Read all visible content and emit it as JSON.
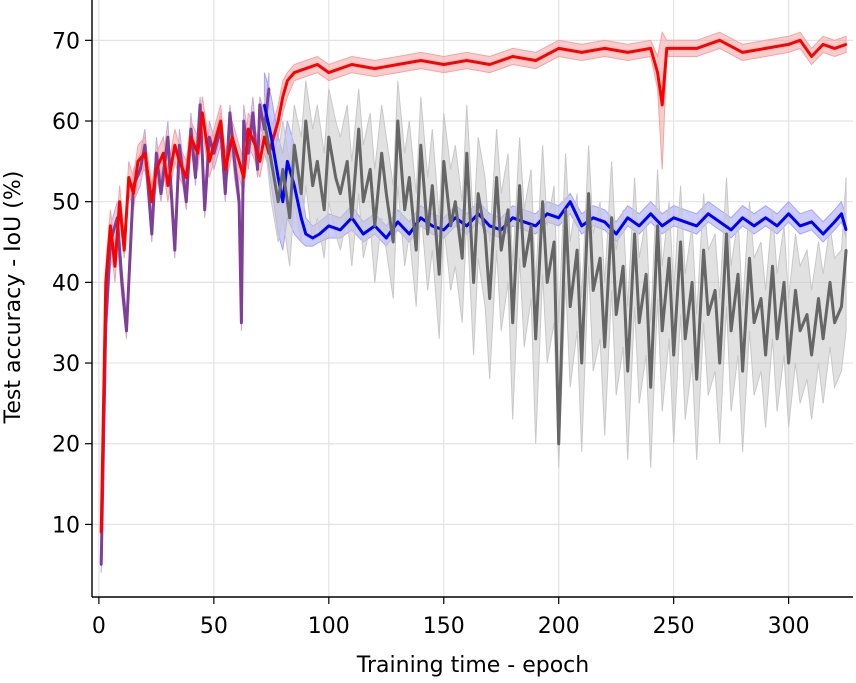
{
  "chart_data": {
    "type": "line",
    "title": "",
    "xlabel": "Training time - epoch",
    "ylabel": "Test accuracy - IoU (%)",
    "xlim": [
      -3,
      328
    ],
    "ylim": [
      1,
      75
    ],
    "xticks": [
      0,
      50,
      100,
      150,
      200,
      250,
      300
    ],
    "yticks": [
      10,
      20,
      30,
      40,
      50,
      60,
      70
    ],
    "grid": true,
    "legend": "none",
    "series": [
      {
        "color": "#7f3f98",
        "band_color": "#c9a7d8",
        "x": [
          1,
          3,
          5,
          8,
          10,
          12,
          15,
          18,
          20,
          23,
          25,
          27,
          30,
          33,
          35,
          38,
          40,
          42,
          44,
          46,
          48,
          50,
          53,
          55,
          57,
          59,
          61,
          62,
          63,
          65,
          67,
          69,
          70,
          72,
          74
        ],
        "y": [
          5,
          35,
          45,
          48,
          40,
          34,
          52,
          54,
          57,
          46,
          56,
          51,
          58,
          44,
          57,
          50,
          59,
          53,
          62,
          49,
          58,
          56,
          59,
          51,
          61,
          55,
          50,
          35,
          60,
          56,
          61,
          54,
          62,
          59,
          64
        ],
        "lower": [
          4,
          32,
          42,
          45,
          38,
          33,
          50,
          52,
          55,
          45,
          54,
          50,
          56,
          43,
          55,
          49,
          57,
          52,
          60,
          48,
          56,
          54,
          57,
          50,
          59,
          53,
          49,
          34,
          58,
          54,
          59,
          53,
          60,
          57,
          62
        ],
        "upper": [
          7,
          38,
          47,
          50,
          42,
          36,
          54,
          56,
          59,
          48,
          58,
          53,
          60,
          46,
          59,
          52,
          61,
          55,
          63,
          51,
          60,
          58,
          61,
          53,
          62,
          57,
          52,
          37,
          62,
          58,
          63,
          56,
          63,
          61,
          66
        ]
      },
      {
        "color": "#ff0000",
        "band_color": "#f4a3a3",
        "x": [
          1,
          3,
          5,
          7,
          9,
          11,
          13,
          15,
          17,
          20,
          23,
          25,
          28,
          30,
          33,
          35,
          38,
          40,
          43,
          45,
          48,
          50,
          53,
          55,
          58,
          60,
          63,
          65,
          68,
          70,
          72,
          74,
          76,
          78,
          80,
          82,
          85,
          90,
          95,
          100,
          110,
          120,
          130,
          140,
          150,
          160,
          170,
          180,
          190,
          200,
          210,
          220,
          230,
          240,
          243,
          245,
          247,
          250,
          260,
          270,
          280,
          290,
          300,
          305,
          310,
          315,
          320,
          325
        ],
        "y": [
          9,
          40,
          47,
          42,
          50,
          44,
          53,
          51,
          55,
          56,
          50,
          54,
          56,
          52,
          57,
          55,
          53,
          58,
          56,
          61,
          55,
          57,
          60,
          54,
          58,
          56,
          53,
          59,
          57,
          55,
          58,
          56,
          58,
          60,
          63,
          65,
          66,
          66.5,
          67,
          66,
          67,
          66.5,
          67,
          67.5,
          67,
          67.5,
          67,
          68,
          67.5,
          69,
          68.5,
          69,
          68.5,
          69,
          66,
          62,
          69,
          69,
          69,
          70,
          68.5,
          69,
          69.5,
          70,
          68,
          69.5,
          69,
          69.5
        ],
        "lower": [
          9,
          38,
          45,
          40,
          48,
          43,
          51,
          49,
          53,
          54,
          48,
          52,
          54,
          50,
          55,
          53,
          51,
          56,
          54,
          59,
          53,
          55,
          58,
          52,
          56,
          54,
          51,
          57,
          55,
          53,
          56,
          54,
          56,
          58,
          61,
          63,
          65,
          65.5,
          66,
          65,
          66,
          65.5,
          66,
          66.5,
          66,
          66.5,
          66,
          67,
          66.5,
          68,
          67.5,
          68,
          67.5,
          68,
          64,
          54,
          68,
          68,
          68,
          69,
          67.5,
          68,
          68.5,
          69,
          67,
          68.5,
          68,
          68.5
        ],
        "upper": [
          10,
          42,
          49,
          44,
          52,
          46,
          55,
          53,
          57,
          58,
          52,
          56,
          58,
          54,
          59,
          57,
          55,
          60,
          58,
          63,
          57,
          59,
          62,
          56,
          60,
          58,
          55,
          61,
          59,
          57,
          60,
          58,
          60,
          62,
          65,
          66,
          67,
          67.5,
          68,
          67,
          68,
          67.5,
          68,
          68.5,
          68,
          68.5,
          68,
          69,
          68.5,
          70,
          69.5,
          70,
          69.5,
          70,
          68,
          71,
          70,
          70,
          70,
          71,
          69.5,
          70,
          70.5,
          71,
          69,
          70.5,
          70,
          70.5
        ]
      },
      {
        "color": "#0000ff",
        "band_color": "#a3a3ff",
        "x": [
          72,
          75,
          78,
          80,
          82,
          85,
          88,
          90,
          93,
          96,
          100,
          105,
          110,
          115,
          120,
          125,
          130,
          135,
          140,
          145,
          150,
          155,
          160,
          165,
          170,
          175,
          180,
          185,
          190,
          195,
          200,
          205,
          210,
          215,
          220,
          225,
          230,
          235,
          240,
          245,
          250,
          255,
          260,
          265,
          270,
          275,
          280,
          285,
          290,
          295,
          300,
          305,
          310,
          315,
          320,
          323,
          325
        ],
        "y": [
          62,
          58,
          53,
          50,
          55,
          52,
          48,
          46,
          45.5,
          46,
          47,
          46.5,
          48,
          46,
          47,
          45.5,
          47.5,
          46,
          48,
          47,
          46.5,
          48,
          47,
          48.5,
          47,
          46.5,
          48,
          47.5,
          47,
          48.5,
          48,
          50,
          47,
          48,
          47.5,
          46,
          48,
          47,
          48.5,
          47,
          48,
          47.5,
          47,
          48.5,
          47.5,
          46.5,
          48,
          47,
          48,
          47,
          48.5,
          47,
          47.5,
          46,
          47.5,
          48.5,
          46.5
        ],
        "lower": [
          58,
          52,
          46,
          44,
          48,
          46,
          45,
          44.5,
          44.5,
          45,
          45.5,
          45.5,
          46.5,
          45,
          46,
          44.5,
          46.5,
          45,
          47,
          46,
          45.5,
          47,
          46,
          47.5,
          46,
          45.5,
          47,
          46.5,
          46,
          47.5,
          47,
          48.5,
          46,
          47,
          46.5,
          45,
          47,
          46,
          47.5,
          46,
          47,
          46.5,
          46,
          47.5,
          46.5,
          45.5,
          47,
          46,
          47,
          46,
          47.5,
          46,
          46.5,
          45,
          46.5,
          47.5,
          45.5
        ],
        "upper": [
          66,
          63,
          58,
          56,
          60,
          57,
          52,
          48,
          47,
          47.5,
          48.5,
          48,
          49.5,
          47.5,
          48.5,
          47,
          49,
          47.5,
          49.5,
          48.5,
          48,
          49.5,
          48.5,
          50,
          48.5,
          48,
          49.5,
          49,
          48.5,
          50,
          49.5,
          51,
          48.5,
          49.5,
          49,
          47.5,
          49.5,
          48.5,
          50,
          48.5,
          49.5,
          49,
          48.5,
          50,
          49,
          48,
          49.5,
          48.5,
          49.5,
          48.5,
          50,
          48.5,
          49,
          47.5,
          49,
          50,
          48
        ]
      },
      {
        "color": "#666666",
        "band_color": "#c8c8c8",
        "x": [
          72,
          75,
          78,
          80,
          83,
          85,
          88,
          90,
          93,
          95,
          98,
          100,
          103,
          105,
          108,
          110,
          113,
          115,
          118,
          120,
          123,
          125,
          128,
          130,
          133,
          135,
          138,
          140,
          143,
          145,
          148,
          150,
          153,
          155,
          158,
          160,
          163,
          165,
          168,
          170,
          173,
          175,
          178,
          180,
          183,
          185,
          188,
          190,
          193,
          195,
          198,
          200,
          203,
          205,
          208,
          210,
          213,
          215,
          218,
          220,
          223,
          225,
          228,
          230,
          233,
          235,
          238,
          240,
          243,
          245,
          248,
          250,
          253,
          255,
          258,
          260,
          263,
          265,
          268,
          270,
          273,
          275,
          278,
          280,
          283,
          285,
          288,
          290,
          293,
          295,
          298,
          300,
          303,
          305,
          308,
          310,
          313,
          315,
          318,
          320,
          323,
          325
        ],
        "y": [
          60,
          55,
          50,
          54,
          48,
          57,
          51,
          60,
          52,
          55,
          49,
          58,
          53,
          51,
          55,
          48,
          59,
          50,
          54,
          47,
          56,
          51,
          45,
          60,
          49,
          53,
          44,
          57,
          46,
          52,
          41,
          55,
          47,
          50,
          43,
          56,
          40,
          51,
          46,
          38,
          53,
          44,
          49,
          35,
          52,
          42,
          47,
          33,
          50,
          40,
          45,
          20,
          49,
          37,
          44,
          30,
          51,
          39,
          43,
          32,
          48,
          36,
          42,
          29,
          46,
          35,
          41,
          27,
          47,
          34,
          43,
          31,
          45,
          33,
          40,
          28,
          44,
          36,
          39,
          30,
          46,
          34,
          41,
          29,
          43,
          35,
          38,
          31,
          42,
          33,
          40,
          30,
          39,
          34,
          36,
          31,
          38,
          33,
          40,
          35,
          37,
          44
        ],
        "lower": [
          58,
          50,
          45,
          48,
          42,
          50,
          45,
          52,
          45,
          48,
          43,
          50,
          46,
          44,
          48,
          42,
          51,
          43,
          47,
          40,
          48,
          44,
          38,
          52,
          42,
          46,
          37,
          49,
          39,
          44,
          33,
          47,
          39,
          42,
          35,
          48,
          31,
          43,
          37,
          28,
          44,
          34,
          40,
          23,
          43,
          32,
          38,
          20,
          41,
          30,
          35,
          17,
          40,
          27,
          34,
          19,
          42,
          29,
          33,
          21,
          39,
          26,
          32,
          18,
          37,
          25,
          31,
          17,
          38,
          24,
          33,
          20,
          36,
          23,
          30,
          18,
          35,
          26,
          29,
          20,
          37,
          24,
          31,
          19,
          34,
          26,
          29,
          22,
          33,
          24,
          31,
          22,
          30,
          25,
          28,
          23,
          30,
          25,
          32,
          27,
          29,
          34
        ],
        "upper": [
          63,
          60,
          56,
          60,
          55,
          62,
          58,
          65,
          59,
          62,
          56,
          64,
          60,
          58,
          62,
          55,
          64,
          57,
          61,
          54,
          62,
          58,
          52,
          65,
          56,
          60,
          51,
          63,
          53,
          59,
          48,
          61,
          54,
          57,
          50,
          62,
          47,
          58,
          53,
          45,
          59,
          51,
          56,
          42,
          58,
          49,
          54,
          40,
          57,
          47,
          52,
          35,
          56,
          45,
          51,
          38,
          57,
          46,
          50,
          40,
          55,
          44,
          49,
          37,
          53,
          43,
          48,
          35,
          54,
          42,
          50,
          39,
          52,
          41,
          47,
          36,
          51,
          44,
          46,
          38,
          53,
          42,
          48,
          37,
          50,
          43,
          45,
          39,
          49,
          41,
          47,
          38,
          46,
          42,
          44,
          39,
          45,
          41,
          47,
          43,
          44,
          53
        ]
      }
    ]
  }
}
